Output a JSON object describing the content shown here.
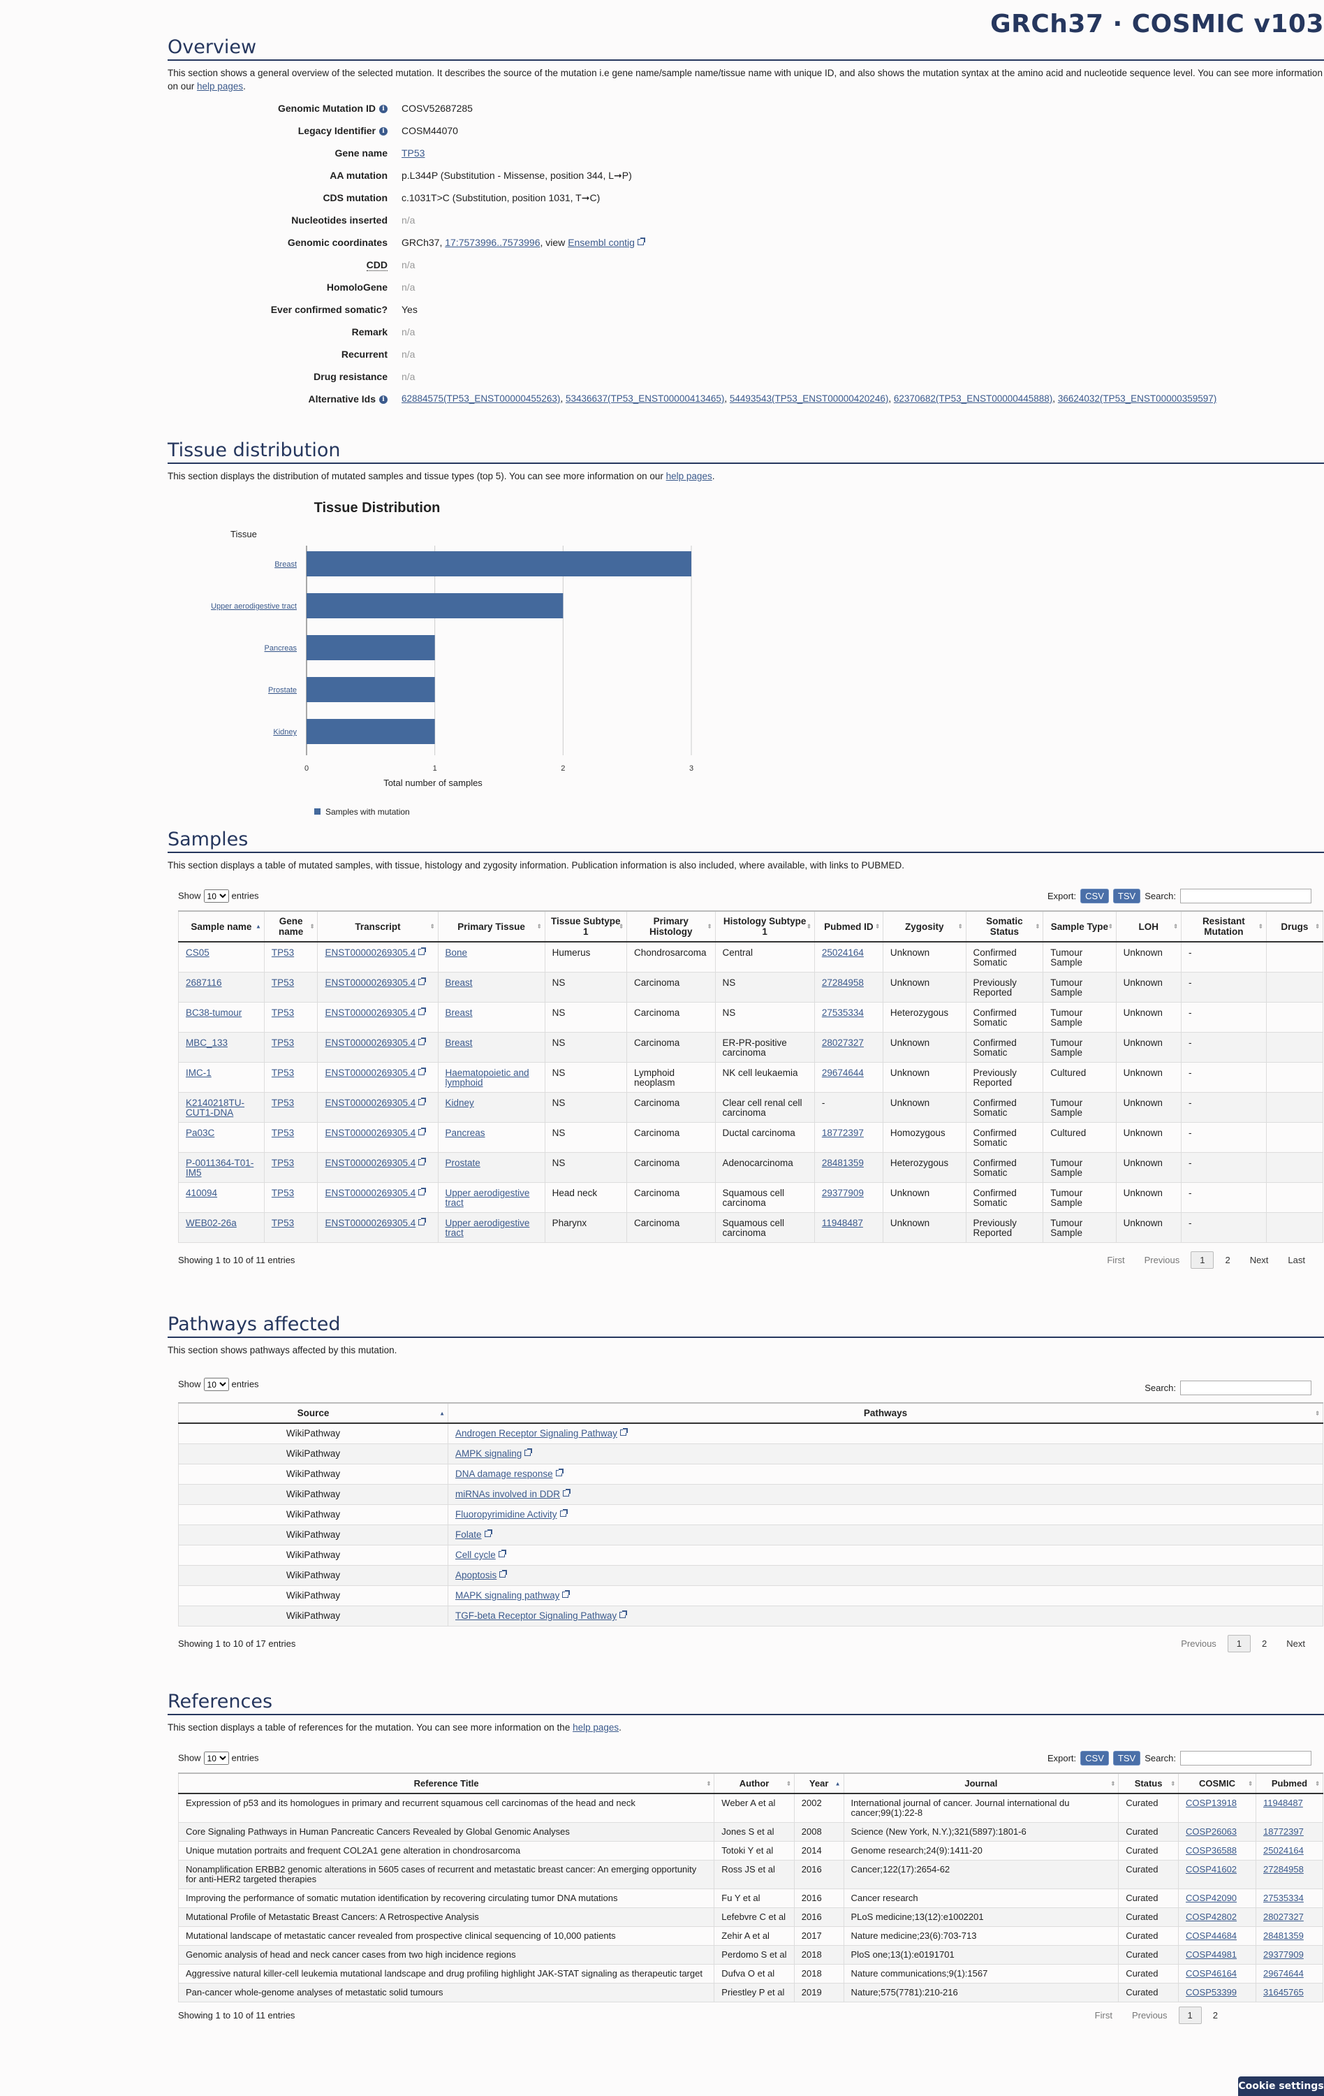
{
  "header": {
    "title": "GRCh37 · COSMIC v103"
  },
  "overview": {
    "title": "Overview",
    "desc_pre": "This section shows a general overview of the selected mutation. It describes the source of the mutation i.e gene name/sample name/tissue name with unique ID, and also shows the mutation syntax at the amino acid and nucleotide sequence level. You can see more information on our ",
    "desc_link": "help pages",
    "desc_post": ".",
    "rows": {
      "genomic_mutation_id": {
        "label": "Genomic Mutation ID",
        "value": "COSV52687285"
      },
      "legacy_identifier": {
        "label": "Legacy Identifier",
        "value": "COSM44070"
      },
      "gene_name": {
        "label": "Gene name",
        "value": "TP53"
      },
      "aa_mutation": {
        "label": "AA mutation",
        "value": "p.L344P (Substitution - Missense, position 344, L➞P)"
      },
      "cds_mutation": {
        "label": "CDS mutation",
        "value": "c.1031T>C (Substitution, position 1031, T➞C)"
      },
      "nucleotides_inserted": {
        "label": "Nucleotides inserted",
        "value": "n/a"
      },
      "genomic_coordinates": {
        "label": "Genomic coordinates",
        "prefix": "GRCh37, ",
        "link": "17:7573996..7573996",
        "mid": ", view ",
        "link2": "Ensembl contig"
      },
      "cdd": {
        "label": "CDD",
        "value": "n/a"
      },
      "homologene": {
        "label": "HomoloGene",
        "value": "n/a"
      },
      "ever_confirmed": {
        "label": "Ever confirmed somatic?",
        "value": "Yes"
      },
      "remark": {
        "label": "Remark",
        "value": "n/a"
      },
      "recurrent": {
        "label": "Recurrent",
        "value": "n/a"
      },
      "drug_resistance": {
        "label": "Drug resistance",
        "value": "n/a"
      },
      "alternative_ids": {
        "label": "Alternative Ids",
        "ids": [
          "62884575(TP53_ENST00000455263)",
          "53436637(TP53_ENST00000413465)",
          "54493543(TP53_ENST00000420246)",
          "62370682(TP53_ENST00000445888)",
          "36624032(TP53_ENST00000359597)"
        ]
      }
    }
  },
  "tissue": {
    "title": "Tissue distribution",
    "desc_pre": "This section displays the distribution of mutated samples and tissue types (top 5). You can see more information on our ",
    "desc_link": "help pages",
    "desc_post": "."
  },
  "chart_data": {
    "type": "bar",
    "orientation": "horizontal",
    "title": "Tissue Distribution",
    "ylabel": "Tissue",
    "xlabel": "Total number of samples",
    "categories": [
      "Breast",
      "Upper aerodigestive tract",
      "Pancreas",
      "Prostate",
      "Kidney"
    ],
    "series": [
      {
        "name": "Samples with mutation",
        "values": [
          3,
          2,
          1,
          1,
          1
        ],
        "color": "#44699c"
      }
    ],
    "xlim": [
      0,
      3
    ],
    "xticks": [
      "0",
      "1",
      "2",
      "3"
    ],
    "grid": true,
    "legend": "bottom-left"
  },
  "samples": {
    "title": "Samples",
    "desc": "This section displays a table of mutated samples, with tissue, histology and zygosity information. Publication information is also included, where available, with links to PUBMED.",
    "show_label": "Show",
    "entries_label": "entries",
    "page_size": "10",
    "export_label": "Export:",
    "csv_label": "CSV",
    "tsv_label": "TSV",
    "search_label": "Search:",
    "columns": [
      "Sample name",
      "Gene name",
      "Transcript",
      "Primary Tissue",
      "Tissue Subtype 1",
      "Primary Histology",
      "Histology Subtype 1",
      "Pubmed ID",
      "Zygosity",
      "Somatic Status",
      "Sample Type",
      "LOH",
      "Resistant Mutation",
      "Drugs"
    ],
    "rows": [
      [
        "CS05",
        "TP53",
        "ENST00000269305.4",
        "Bone",
        "Humerus",
        "Chondrosarcoma",
        "Central",
        "25024164",
        "Unknown",
        "Confirmed Somatic",
        "Tumour Sample",
        "Unknown",
        "-",
        ""
      ],
      [
        "2687116",
        "TP53",
        "ENST00000269305.4",
        "Breast",
        "NS",
        "Carcinoma",
        "NS",
        "27284958",
        "Unknown",
        "Previously Reported",
        "Tumour Sample",
        "Unknown",
        "-",
        ""
      ],
      [
        "BC38-tumour",
        "TP53",
        "ENST00000269305.4",
        "Breast",
        "NS",
        "Carcinoma",
        "NS",
        "27535334",
        "Heterozygous",
        "Confirmed Somatic",
        "Tumour Sample",
        "Unknown",
        "-",
        ""
      ],
      [
        "MBC_133",
        "TP53",
        "ENST00000269305.4",
        "Breast",
        "NS",
        "Carcinoma",
        "ER-PR-positive carcinoma",
        "28027327",
        "Unknown",
        "Confirmed Somatic",
        "Tumour Sample",
        "Unknown",
        "-",
        ""
      ],
      [
        "IMC-1",
        "TP53",
        "ENST00000269305.4",
        "Haematopoietic and lymphoid",
        "NS",
        "Lymphoid neoplasm",
        "NK cell leukaemia",
        "29674644",
        "Unknown",
        "Previously Reported",
        "Cultured",
        "Unknown",
        "-",
        ""
      ],
      [
        "K2140218TU-CUT1-DNA",
        "TP53",
        "ENST00000269305.4",
        "Kidney",
        "NS",
        "Carcinoma",
        "Clear cell renal cell carcinoma",
        "-",
        "Unknown",
        "Confirmed Somatic",
        "Tumour Sample",
        "Unknown",
        "-",
        ""
      ],
      [
        "Pa03C",
        "TP53",
        "ENST00000269305.4",
        "Pancreas",
        "NS",
        "Carcinoma",
        "Ductal carcinoma",
        "18772397",
        "Homozygous",
        "Confirmed Somatic",
        "Cultured",
        "Unknown",
        "-",
        ""
      ],
      [
        "P-0011364-T01-IM5",
        "TP53",
        "ENST00000269305.4",
        "Prostate",
        "NS",
        "Carcinoma",
        "Adenocarcinoma",
        "28481359",
        "Heterozygous",
        "Confirmed Somatic",
        "Tumour Sample",
        "Unknown",
        "-",
        ""
      ],
      [
        "410094",
        "TP53",
        "ENST00000269305.4",
        "Upper aerodigestive tract",
        "Head neck",
        "Carcinoma",
        "Squamous cell carcinoma",
        "29377909",
        "Unknown",
        "Confirmed Somatic",
        "Tumour Sample",
        "Unknown",
        "-",
        ""
      ],
      [
        "WEB02-26a",
        "TP53",
        "ENST00000269305.4",
        "Upper aerodigestive tract",
        "Pharynx",
        "Carcinoma",
        "Squamous cell carcinoma",
        "11948487",
        "Unknown",
        "Previously Reported",
        "Tumour Sample",
        "Unknown",
        "-",
        ""
      ]
    ],
    "info": "Showing 1 to 10 of 11 entries",
    "pager": {
      "first": "First",
      "previous": "Previous",
      "page1": "1",
      "page2": "2",
      "next": "Next",
      "last": "Last"
    }
  },
  "pathways": {
    "title": "Pathways affected",
    "desc": "This section shows pathways affected by this mutation.",
    "show_label": "Show",
    "entries_label": "entries",
    "page_size": "10",
    "search_label": "Search:",
    "columns": [
      "Source",
      "Pathways"
    ],
    "rows": [
      [
        "WikiPathway",
        "Androgen Receptor Signaling Pathway"
      ],
      [
        "WikiPathway",
        "AMPK signaling"
      ],
      [
        "WikiPathway",
        "DNA damage response"
      ],
      [
        "WikiPathway",
        "miRNAs involved in DDR"
      ],
      [
        "WikiPathway",
        "Fluoropyrimidine Activity"
      ],
      [
        "WikiPathway",
        "Folate"
      ],
      [
        "WikiPathway",
        "Cell cycle"
      ],
      [
        "WikiPathway",
        "Apoptosis"
      ],
      [
        "WikiPathway",
        "MAPK signaling pathway"
      ],
      [
        "WikiPathway",
        "TGF-beta Receptor Signaling Pathway"
      ]
    ],
    "info": "Showing 1 to 10 of 17 entries",
    "pager": {
      "previous": "Previous",
      "page1": "1",
      "page2": "2",
      "next": "Next"
    }
  },
  "references": {
    "title": "References",
    "desc_pre": "This section displays a table of references for the mutation. You can see more information on the ",
    "desc_link": "help pages",
    "desc_post": ".",
    "show_label": "Show",
    "entries_label": "entries",
    "page_size": "10",
    "export_label": "Export:",
    "csv_label": "CSV",
    "tsv_label": "TSV",
    "search_label": "Search:",
    "columns": [
      "Reference Title",
      "Author",
      "Year",
      "Journal",
      "Status",
      "COSMIC",
      "Pubmed"
    ],
    "rows": [
      [
        "Expression of p53 and its homologues in primary and recurrent squamous cell carcinomas of the head and neck",
        "Weber A et al",
        "2002",
        "International journal of cancer. Journal international du cancer;99(1):22-8",
        "Curated",
        "COSP13918",
        "11948487"
      ],
      [
        "Core Signaling Pathways in Human Pancreatic Cancers Revealed by Global Genomic Analyses",
        "Jones S et al",
        "2008",
        "Science (New York, N.Y.);321(5897):1801-6",
        "Curated",
        "COSP26063",
        "18772397"
      ],
      [
        "Unique mutation portraits and frequent COL2A1 gene alteration in chondrosarcoma",
        "Totoki Y et al",
        "2014",
        "Genome research;24(9):1411-20",
        "Curated",
        "COSP36588",
        "25024164"
      ],
      [
        "Nonamplification ERBB2 genomic alterations in 5605 cases of recurrent and metastatic breast cancer: An emerging opportunity for anti-HER2 targeted therapies",
        "Ross JS et al",
        "2016",
        "Cancer;122(17):2654-62",
        "Curated",
        "COSP41602",
        "27284958"
      ],
      [
        "Improving the performance of somatic mutation identification by recovering circulating tumor DNA mutations",
        "Fu Y et al",
        "2016",
        "Cancer research",
        "Curated",
        "COSP42090",
        "27535334"
      ],
      [
        "Mutational Profile of Metastatic Breast Cancers: A Retrospective Analysis",
        "Lefebvre C et al",
        "2016",
        "PLoS medicine;13(12):e1002201",
        "Curated",
        "COSP42802",
        "28027327"
      ],
      [
        "Mutational landscape of metastatic cancer revealed from prospective clinical sequencing of 10,000 patients",
        "Zehir A et al",
        "2017",
        "Nature medicine;23(6):703-713",
        "Curated",
        "COSP44684",
        "28481359"
      ],
      [
        "Genomic analysis of head and neck cancer cases from two high incidence regions",
        "Perdomo S et al",
        "2018",
        "PloS one;13(1):e0191701",
        "Curated",
        "COSP44981",
        "29377909"
      ],
      [
        "Aggressive natural killer-cell leukemia mutational landscape and drug profiling highlight JAK-STAT signaling as therapeutic target",
        "Dufva O et al",
        "2018",
        "Nature communications;9(1):1567",
        "Curated",
        "COSP46164",
        "29674644"
      ],
      [
        "Pan-cancer whole-genome analyses of metastatic solid tumours",
        "Priestley P et al",
        "2019",
        "Nature;575(7781):210-216",
        "Curated",
        "COSP53399",
        "31645765"
      ]
    ],
    "info": "Showing 1 to 10 of 11 entries",
    "pager": {
      "first": "First",
      "previous": "Previous",
      "page1": "1",
      "page2": "2"
    }
  },
  "cookie": {
    "label": "Cookie settings"
  }
}
